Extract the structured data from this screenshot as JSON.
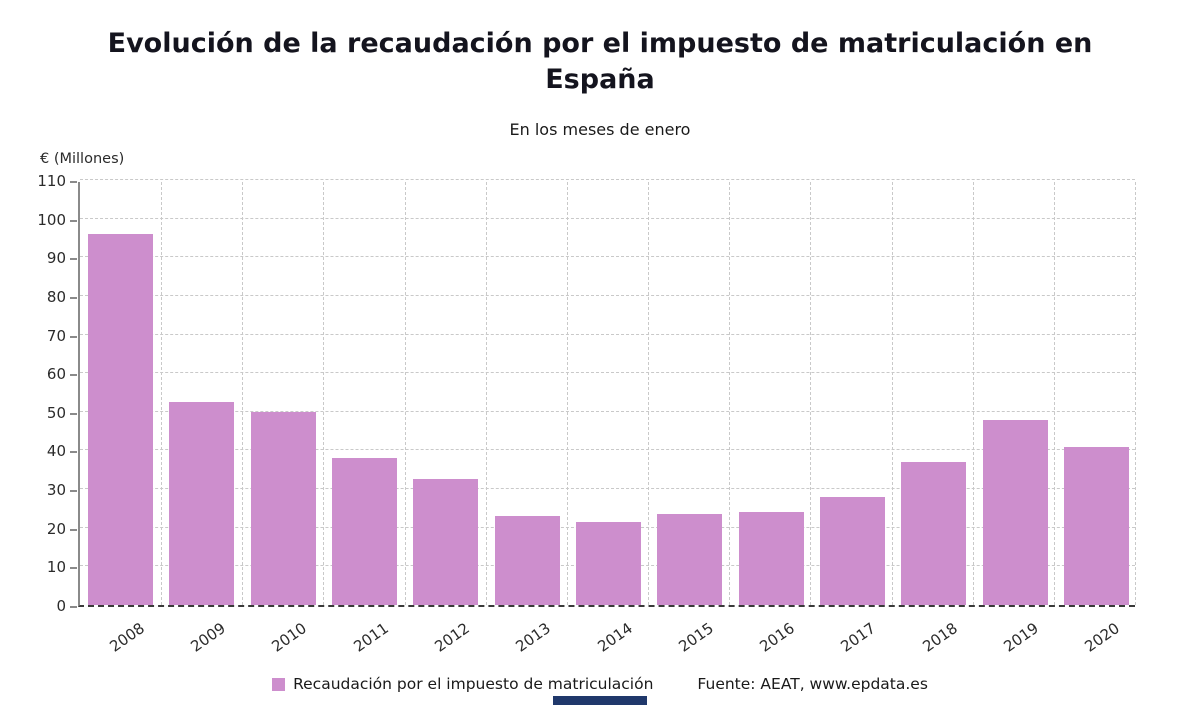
{
  "title": "Evolución de la recaudación por el impuesto de matriculación en España",
  "subtitle": "En los meses de enero",
  "y_unit_label": "€ (Millones)",
  "legend": {
    "label": "Recaudación por el impuesto de matriculación",
    "swatch_color": "#cd8ecd"
  },
  "source": "Fuente: AEAT, www.epdata.es",
  "chart_data": {
    "type": "bar",
    "title": "Evolución de la recaudación por el impuesto de matriculación en España",
    "subtitle": "En los meses de enero",
    "categories": [
      "2008",
      "2009",
      "2010",
      "2011",
      "2012",
      "2013",
      "2014",
      "2015",
      "2016",
      "2017",
      "2018",
      "2019",
      "2020"
    ],
    "values": [
      96,
      52.5,
      50,
      38,
      32.5,
      23,
      21.5,
      23.5,
      24,
      28,
      37,
      48,
      41
    ],
    "series_name": "Recaudación por el impuesto de matriculación",
    "xlabel": "",
    "ylabel": "€ (Millones)",
    "ylim": [
      0,
      110
    ],
    "ytick_step": 10,
    "grid": true,
    "bar_color": "#cd8ecd",
    "legend_position": "bottom"
  }
}
